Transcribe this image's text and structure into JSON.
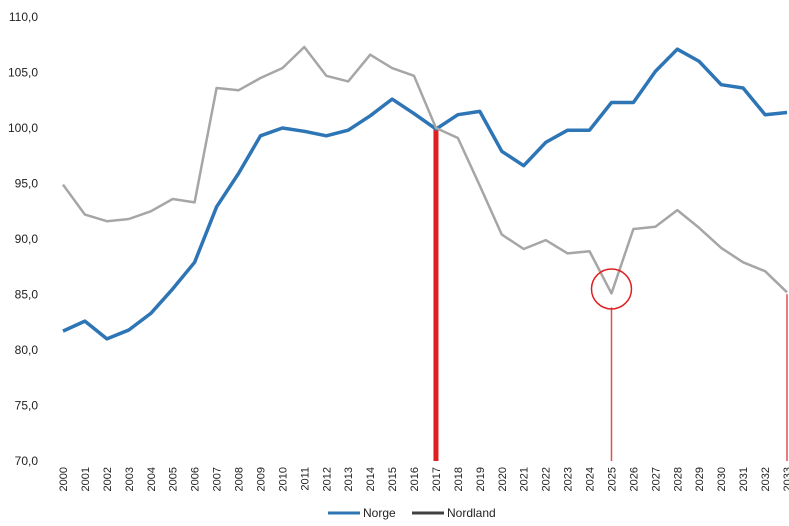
{
  "chart_data": {
    "type": "line",
    "title": "",
    "xlabel": "",
    "ylabel": "",
    "x": [
      "2000",
      "2001",
      "2002",
      "2003",
      "2004",
      "2005",
      "2006",
      "2007",
      "2008",
      "2009",
      "2010",
      "2011",
      "2012",
      "2013",
      "2014",
      "2015",
      "2016",
      "2017",
      "2018",
      "2019",
      "2020",
      "2021",
      "2022",
      "2023",
      "2024",
      "2025",
      "2026",
      "2027",
      "2028",
      "2029",
      "2030",
      "2031",
      "2032",
      "2033"
    ],
    "ylim": [
      70,
      110
    ],
    "yticks": [
      "70,0",
      "75,0",
      "80,0",
      "85,0",
      "90,0",
      "95,0",
      "100,0",
      "105,0",
      "110,0"
    ],
    "grid": false,
    "legend_position": "bottom-center",
    "series": [
      {
        "name": "Norge",
        "color": "#2e75b6",
        "values": [
          81.7,
          82.6,
          81.0,
          81.8,
          83.3,
          85.5,
          87.9,
          92.9,
          95.9,
          99.3,
          100.0,
          99.7,
          99.3,
          99.8,
          101.1,
          102.6,
          101.3,
          99.9,
          101.2,
          101.5,
          97.9,
          96.6,
          98.7,
          99.8,
          99.8,
          102.3,
          102.3,
          105.1,
          107.1,
          106.0,
          103.9,
          103.6,
          101.2,
          101.4
        ]
      },
      {
        "name": "Nordland",
        "color": "#a6a6a6",
        "legend_color": "#404040",
        "values": [
          94.9,
          92.2,
          91.6,
          91.8,
          92.5,
          93.6,
          93.3,
          103.6,
          103.4,
          104.5,
          105.4,
          107.3,
          104.7,
          104.2,
          106.6,
          105.4,
          104.7,
          100.0,
          99.1,
          94.8,
          90.4,
          89.1,
          89.9,
          88.7,
          88.9,
          85.1,
          90.9,
          91.1,
          92.6,
          91.0,
          89.2,
          87.9,
          87.1,
          85.2
        ]
      }
    ],
    "annotations": [
      {
        "kind": "vertical-line",
        "x": "2017",
        "color": "#e02020",
        "weight": "thick"
      },
      {
        "kind": "vertical-line",
        "x": "2025",
        "color": "#e05050",
        "weight": "thin"
      },
      {
        "kind": "vertical-line",
        "x": "2033",
        "color": "#e05050",
        "weight": "thin"
      },
      {
        "kind": "circle",
        "x": "2025",
        "y": 85.5,
        "color": "#e02020"
      }
    ]
  }
}
